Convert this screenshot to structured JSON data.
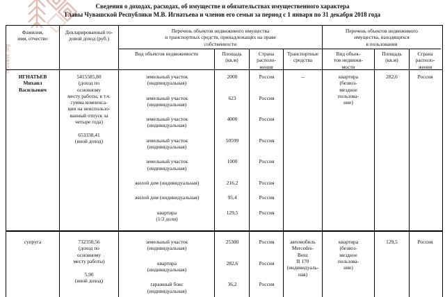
{
  "title": {
    "line1": "Сведения  о доходах, расходах, об имуществе и обязательствах имущественного характера",
    "line2": "Главы Чувашской Республики М.В. Игнатьева и членов его семьи  за период с 1 января по 31 декабря 2018 года"
  },
  "watermark": "chuvash.org",
  "logo_color": "#d8a69b",
  "table": {
    "col_headers": {
      "name": [
        "Фамилия,",
        "имя, отчество"
      ],
      "income": [
        "Декларированный го-",
        "довой доход (руб.)"
      ],
      "owned_group": [
        "Перечень объектов недвижимого имущества",
        "и транспортных средств, принадлежащих  на праве",
        "собственности"
      ],
      "use_group": [
        "Перечень объектов недвижимого",
        "имущества, находящихся",
        "в пользовании"
      ],
      "owned_type": [
        "Вид объектов недвижимости"
      ],
      "owned_area": [
        "Площадь",
        "(кв.м)"
      ],
      "owned_country": [
        "Страна",
        "располо-",
        "жения"
      ],
      "transport": [
        "Транспортные",
        "средства"
      ],
      "use_type": [
        "Вид объек-",
        "тов недвижи-",
        "мости"
      ],
      "use_area": [
        "Площадь",
        "(кв.м)"
      ],
      "use_country": [
        "Страна",
        "располо-",
        "жения"
      ]
    },
    "rows": [
      {
        "name": [
          "ИГНАТЬЕВ",
          "Михаил",
          "Васильевич"
        ],
        "income": [
          "5415585,80",
          "(доход по",
          "основному",
          "месту работы, в т.ч.",
          "сумма компенса-",
          "ции на неиспользо-",
          "ванный отпуск за",
          "четыре года)",
          "",
          "653338,41",
          "(иной доход)"
        ],
        "properties": [
          {
            "lines": [
              "земельный участок",
              "(индивидуальная)"
            ],
            "area": "2000",
            "country": "Россия"
          },
          {
            "lines": [
              "земельный участок",
              "(индивидуальная)"
            ],
            "area": "623",
            "country": "Россия"
          },
          {
            "lines": [
              "земельный участок",
              "(индивидуальная)"
            ],
            "area": "4000",
            "country": "Россия"
          },
          {
            "lines": [
              "земельный участок",
              "(индивидуальная)"
            ],
            "area": "50599",
            "country": "Россия"
          },
          {
            "lines": [
              "земельный участок",
              "(индивидуальная)"
            ],
            "area": "1000",
            "country": "Россия"
          },
          {
            "lines": [
              "жилой дом (индивидуальная)"
            ],
            "area": "216,2",
            "country": "Россия"
          },
          {
            "lines": [
              "жилой дом (индивидуальная)"
            ],
            "area": "95,4",
            "country": "Россия"
          },
          {
            "lines": [
              "квартира",
              "(1/3 доли)"
            ],
            "area": "129,5",
            "country": "Россия"
          }
        ],
        "transport": [
          "--"
        ],
        "use_type": [
          "квартира",
          "(безвоз-",
          "мездное",
          "пользова-",
          "ние)"
        ],
        "use_area": "282,6",
        "use_country": "Россия"
      },
      {
        "name": [
          "супруга"
        ],
        "income": [
          "732350,56",
          "(доход по",
          "основному",
          "месту работы)",
          "",
          "5,90",
          "(иной доход)"
        ],
        "properties": [
          {
            "lines": [
              "земельный участок",
              "(индивидуальная)"
            ],
            "area": "25300",
            "country": "Россия"
          },
          {
            "lines": [
              "квартира",
              "(индивидуальная)"
            ],
            "area": "282,6",
            "country": "Россия"
          },
          {
            "lines": [
              "гаражный бокс",
              "(индивидуальная)"
            ],
            "area": "36,2",
            "country": "Россия"
          }
        ],
        "transport": [
          "автомобиль",
          "Mercedes-",
          "Benz",
          "В 170",
          "(индивидуаль-",
          "ная)"
        ],
        "use_type": [
          "квартира",
          "(безвоз-",
          "мездное",
          "пользова-",
          "ние)"
        ],
        "use_area": "129,5",
        "use_country": "Россия"
      }
    ]
  }
}
